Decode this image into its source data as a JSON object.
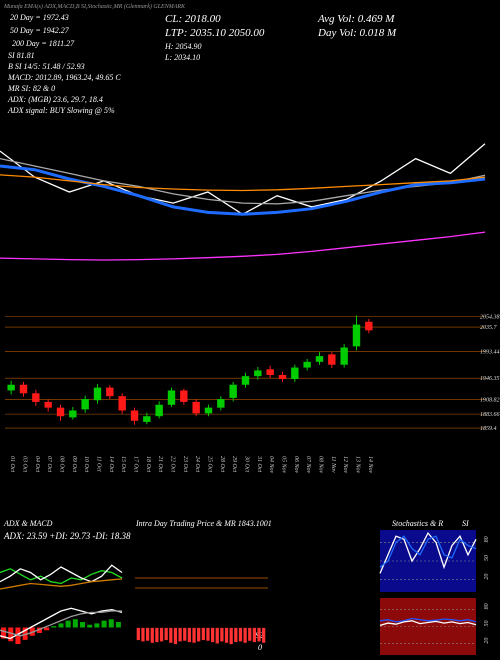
{
  "header": {
    "top": "Munafa EMA(s) ADX,MACD,B  SI,Stochastic,MR  (Glenmark) GLENMARK",
    "ma20": "20  Day = 1972.43",
    "ma50": "50  Day = 1942.27",
    "ma200": "200  Day = 1811.27",
    "si": "SI 81.81",
    "si14": "B        SI 14/5: 51.48 / 52.93",
    "macd": "MACD: 2012.89,  1963.24,  49.65 C",
    "mr": "MR        SI: 82  & 0",
    "adx": "ADX:            (MGB) 23.6,  29.7,  18.4",
    "adxsig": "ADX  signal:            BUY Slowing @ 5%",
    "cl": "CL: 2018.00",
    "ltp": "LTP: 2035.10   2050.00",
    "h": "H: 2054.90",
    "l": "L: 2034.10",
    "avgvol": "Avg Vol: 0.469  M",
    "dayvol": "Day Vol: 0.018  M"
  },
  "panels": {
    "adx_title": "ADX  & MACD",
    "adx_values": "ADX: 23.59  +DI: 29.73  -DI: 18.38",
    "intra_title": "Intra  Day Trading Price  & MR   1843.1001",
    "intra_s2": "S2",
    "intra_zero": "0",
    "stoch_title": "Stochastics & R",
    "stoch_si": "SI"
  },
  "chart_data": [
    {
      "type": "line",
      "ylim": [
        1750,
        2100
      ],
      "series": [
        {
          "color": "#ffffff",
          "values": [
            2070,
            2000,
            1960,
            1990,
            1950,
            1930,
            1960,
            1900,
            1950,
            1920,
            1940,
            1990,
            2050,
            2010,
            2090
          ]
        },
        {
          "color": "#aaaaaa",
          "values": [
            2050,
            2030,
            2010,
            1990,
            1975,
            1955,
            1940,
            1930,
            1928,
            1935,
            1950,
            1965,
            1975,
            1985,
            2005
          ]
        },
        {
          "color": "#1e6bff",
          "values": [
            2030,
            2020,
            1995,
            1975,
            1950,
            1920,
            1905,
            1900,
            1905,
            1915,
            1935,
            1960,
            1980,
            1985,
            1995
          ]
        },
        {
          "color": "#ff8c00",
          "values": [
            2006,
            2000,
            1990,
            1980,
            1972,
            1968,
            1965,
            1964,
            1966,
            1970,
            1975,
            1980,
            1985,
            1990,
            2000
          ]
        },
        {
          "color": "#ff33ff",
          "values": [
            1782,
            1780,
            1778,
            1777,
            1778,
            1780,
            1783,
            1787,
            1792,
            1800,
            1810,
            1820,
            1830,
            1840,
            1852
          ]
        }
      ]
    },
    {
      "type": "candlestick",
      "ylim": [
        1821,
        2083
      ],
      "yticks": [
        2054.38,
        2035.7,
        1993.44,
        1946.35,
        1908.82,
        1883.66,
        1859.4
      ],
      "categories": [
        "01 Oct",
        "03 Oct",
        "04 Oct",
        "07 Oct",
        "08 Oct",
        "09 Oct",
        "10 Oct",
        "11 Oct",
        "14 Oct",
        "15 Oct",
        "17 Oct",
        "18 Oct",
        "21 Oct",
        "22 Oct",
        "23 Oct",
        "24 Oct",
        "25 Oct",
        "28 Oct",
        "29 Oct",
        "30 Oct",
        "31 Oct",
        "04 Nov",
        "05 Nov",
        "06 Nov",
        "07 Nov",
        "08 Nov",
        "11 Nov",
        "12 Nov",
        "13 Nov",
        "14 Nov"
      ],
      "open": [
        1925,
        1935,
        1920,
        1905,
        1895,
        1878,
        1892,
        1908,
        1930,
        1915,
        1890,
        1870,
        1880,
        1900,
        1925,
        1905,
        1885,
        1895,
        1912,
        1935,
        1950,
        1962,
        1952,
        1945,
        1965,
        1975,
        1988,
        1970,
        2002,
        2045
      ],
      "high": [
        1942,
        1940,
        1926,
        1910,
        1900,
        1896,
        1916,
        1936,
        1934,
        1920,
        1895,
        1886,
        1906,
        1930,
        1928,
        1910,
        1900,
        1915,
        1940,
        1956,
        1966,
        1968,
        1958,
        1970,
        1980,
        1992,
        1992,
        2006,
        2056,
        2050
      ],
      "low": [
        1918,
        1914,
        1898,
        1888,
        1872,
        1874,
        1886,
        1902,
        1910,
        1884,
        1865,
        1866,
        1876,
        1896,
        1900,
        1880,
        1880,
        1890,
        1906,
        1930,
        1944,
        1946,
        1940,
        1940,
        1960,
        1970,
        1964,
        1965,
        1995,
        2025
      ],
      "close": [
        1935,
        1920,
        1905,
        1895,
        1880,
        1890,
        1910,
        1930,
        1915,
        1890,
        1872,
        1880,
        1900,
        1925,
        1905,
        1885,
        1895,
        1910,
        1935,
        1950,
        1960,
        1952,
        1945,
        1965,
        1975,
        1985,
        1970,
        2000,
        2040,
        2030
      ],
      "up_color": "#00cc00",
      "down_color": "#ff1a1a",
      "grid_color": "#b35a00"
    },
    {
      "type": "line",
      "ylim": [
        0,
        60
      ],
      "series": [
        {
          "color": "#22dd22",
          "values": [
            30,
            34,
            28,
            22,
            26,
            20,
            18,
            24,
            22,
            28,
            32,
            30,
            24
          ]
        },
        {
          "color": "#ffffff",
          "values": [
            20,
            26,
            34,
            30,
            22,
            28,
            36,
            30,
            24,
            20,
            26,
            38,
            30
          ]
        },
        {
          "color": "#cc7a00",
          "values": [
            12,
            14,
            16,
            18,
            17,
            16,
            15,
            16,
            18,
            20,
            21,
            22,
            23
          ]
        }
      ]
    },
    {
      "type": "bar",
      "ylim": [
        -20,
        20
      ],
      "values": [
        -8,
        -10,
        -12,
        -9,
        -6,
        -4,
        -2,
        1,
        3,
        5,
        6,
        4,
        2,
        3,
        5,
        6,
        4
      ],
      "up_color": "#00aa00",
      "down_color": "#ff1a1a",
      "series": [
        {
          "color": "#ffffff",
          "values": [
            -6,
            -8,
            -4,
            0,
            4,
            8,
            12,
            14,
            12,
            10,
            12,
            13,
            11
          ]
        },
        {
          "color": "#999999",
          "values": [
            -2,
            -4,
            -6,
            -4,
            -1,
            2,
            5,
            8,
            10,
            11,
            11,
            12,
            12
          ]
        }
      ]
    },
    {
      "type": "bar",
      "ylim": [
        -40,
        100
      ],
      "values": [
        -18,
        -20,
        -19,
        -22,
        -21,
        -20,
        -18,
        -22,
        -24,
        -20,
        -19,
        -21,
        -22,
        -20,
        -18,
        -19,
        -21,
        -23,
        -20,
        -22,
        -24,
        -21,
        -20,
        -22,
        -19,
        -21,
        -20,
        -22
      ],
      "down_color": "#ff3333",
      "up_color": "#00aa00"
    },
    {
      "type": "line",
      "ylim": [
        0,
        100
      ],
      "yticks": [
        80,
        50,
        20
      ],
      "background": "#0a0a8c",
      "series": [
        {
          "color": "#ffffff",
          "values": [
            30,
            60,
            90,
            85,
            50,
            70,
            95,
            80,
            40,
            75,
            90,
            60,
            85
          ]
        },
        {
          "color": "#1e6bff",
          "values": [
            40,
            50,
            80,
            90,
            70,
            60,
            85,
            90,
            60,
            55,
            85,
            75,
            70
          ]
        }
      ]
    },
    {
      "type": "line",
      "ylim": [
        0,
        100
      ],
      "yticks": [
        80,
        50,
        20
      ],
      "background": "#8c0a0a",
      "series": [
        {
          "color": "#2255ff",
          "values": [
            60,
            62,
            58,
            60,
            64,
            62,
            60,
            61,
            63,
            62,
            60,
            62,
            58
          ]
        },
        {
          "color": "#ffffff",
          "values": [
            52,
            56,
            54,
            58,
            60,
            55,
            57,
            59,
            56,
            58,
            55,
            57,
            53
          ]
        }
      ]
    }
  ]
}
